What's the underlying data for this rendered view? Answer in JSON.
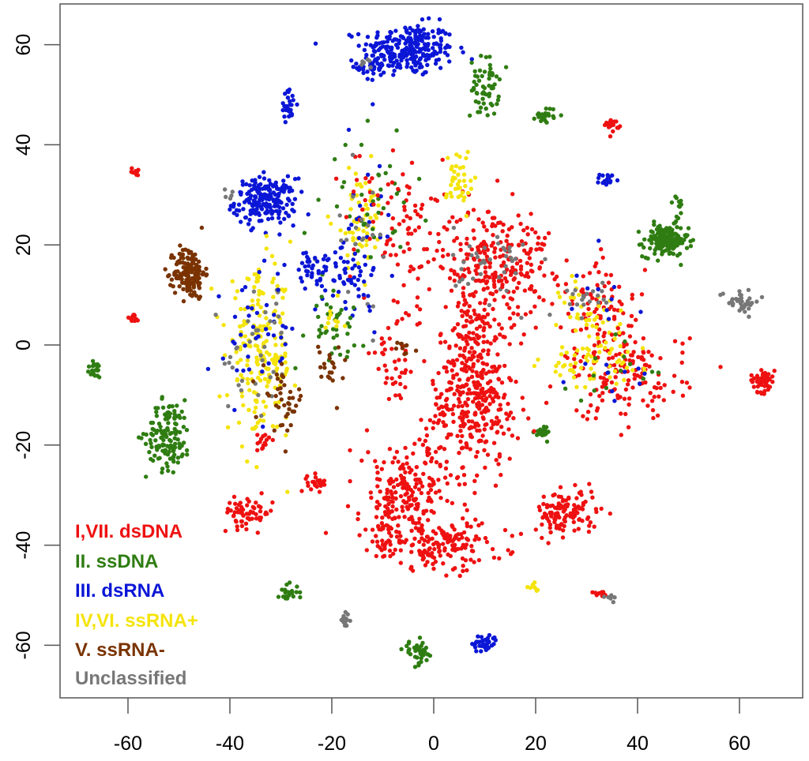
{
  "chart_data": {
    "type": "scatter",
    "title": "",
    "xlabel": "",
    "ylabel": "",
    "xlim": [
      -73,
      72
    ],
    "ylim": [
      -70.5,
      68
    ],
    "xticks": [
      -60,
      -40,
      -20,
      0,
      20,
      40,
      60
    ],
    "yticks": [
      -60,
      -40,
      -20,
      0,
      20,
      40,
      60
    ],
    "grid": false,
    "legend_position": "bottom-left",
    "legend": [
      {
        "key": "dsDNA",
        "label": "I,VII. dsDNA",
        "color": "#ee1111"
      },
      {
        "key": "ssDNA",
        "label": "II. ssDNA",
        "color": "#2f7d12"
      },
      {
        "key": "dsRNA",
        "label": "III. dsRNA",
        "color": "#0b16d6"
      },
      {
        "key": "ssRNApos",
        "label": "IV,VI. ssRNA+",
        "color": "#f4e40a"
      },
      {
        "key": "ssRNAneg",
        "label": "V. ssRNA-",
        "color": "#7a3300"
      },
      {
        "key": "unclassified",
        "label": "Unclassified",
        "color": "#777777"
      }
    ],
    "point_clusters_note": "approximate clusters: [series, center_x, center_y, sd_x, sd_y, count]",
    "clusters": [
      [
        "dsRNA",
        -5,
        59,
        4.5,
        2.6,
        260
      ],
      [
        "dsRNA",
        -12,
        55.5,
        1.5,
        1.5,
        30
      ],
      [
        "unclassified",
        -13,
        56.5,
        1,
        1,
        6
      ],
      [
        "dsRNA",
        -28.5,
        48,
        0.8,
        1.5,
        25
      ],
      [
        "dsRNA",
        -33,
        28.7,
        3,
        2.3,
        200
      ],
      [
        "unclassified",
        -40,
        30,
        0.6,
        0.6,
        5
      ],
      [
        "ssDNA",
        10,
        51.5,
        1.4,
        3,
        60
      ],
      [
        "ssDNA",
        22,
        46,
        1,
        0.8,
        25
      ],
      [
        "dsDNA",
        35,
        44,
        0.7,
        0.6,
        20
      ],
      [
        "dsRNA",
        34,
        33,
        0.7,
        0.6,
        20
      ],
      [
        "dsDNA",
        -58.5,
        34.7,
        0.4,
        0.4,
        8
      ],
      [
        "ssDNA",
        45.5,
        20.8,
        2.2,
        1.6,
        160
      ],
      [
        "ssDNA",
        48,
        27,
        0.5,
        1.5,
        12
      ],
      [
        "unclassified",
        60,
        8.8,
        2,
        1.2,
        40
      ],
      [
        "ssRNAneg",
        -48,
        14.5,
        1.5,
        2.6,
        150
      ],
      [
        "dsDNA",
        -59,
        5.2,
        0.7,
        0.6,
        15
      ],
      [
        "ssDNA",
        -66.5,
        -5,
        0.8,
        0.9,
        20
      ],
      [
        "ssDNA",
        -52,
        -18,
        2.2,
        3.5,
        130
      ],
      [
        "dsDNA",
        64.5,
        -7,
        1.2,
        1.2,
        50
      ],
      [
        "dsDNA",
        -33.5,
        -19.5,
        0.6,
        1.2,
        15
      ],
      [
        "dsDNA",
        -23,
        -27.5,
        0.9,
        0.8,
        25
      ],
      [
        "dsDNA",
        -36.5,
        -33.5,
        2.5,
        1.5,
        60
      ],
      [
        "ssDNA",
        -28.5,
        -49.4,
        1,
        0.8,
        25
      ],
      [
        "unclassified",
        -17.4,
        -55,
        0.5,
        0.7,
        15
      ],
      [
        "ssDNA",
        -3,
        -61.5,
        1.5,
        1.2,
        40
      ],
      [
        "dsRNA",
        10,
        -59.6,
        1.2,
        0.9,
        40
      ],
      [
        "dsDNA",
        32.5,
        -49.5,
        1,
        0.5,
        10
      ],
      [
        "unclassified",
        34,
        -50.5,
        0.6,
        0.3,
        6
      ],
      [
        "ssDNA",
        21.5,
        -17.5,
        0.8,
        0.8,
        20
      ],
      [
        "ssRNApos",
        19.5,
        -48.5,
        0.5,
        0.4,
        8
      ],
      [
        "dsDNA",
        26,
        -33.5,
        3,
        2.3,
        120
      ],
      [
        "dsDNA",
        12,
        17,
        5.5,
        5.5,
        250
      ],
      [
        "unclassified",
        12,
        16,
        4,
        4,
        40
      ],
      [
        "dsDNA",
        8,
        -2,
        3.5,
        7,
        200
      ],
      [
        "dsDNA",
        8,
        -13,
        4.5,
        5,
        200
      ],
      [
        "dsDNA",
        -4.5,
        -29,
        5.5,
        5,
        200
      ],
      [
        "dsDNA",
        2,
        -40,
        6,
        2.5,
        150
      ],
      [
        "dsDNA",
        -9,
        -37,
        2,
        4,
        60
      ],
      [
        "dsDNA",
        -7.5,
        -3,
        2.5,
        4.5,
        40
      ],
      [
        "dsDNA",
        -4.5,
        21.6,
        3,
        8,
        50
      ],
      [
        "ssRNApos",
        -34,
        -2,
        3.2,
        8,
        200
      ],
      [
        "dsRNA",
        -35,
        2,
        4,
        7,
        40
      ],
      [
        "unclassified",
        -34,
        -2,
        3.5,
        7,
        35
      ],
      [
        "ssRNAneg",
        -29.5,
        -11,
        2,
        3,
        40
      ],
      [
        "ssRNApos",
        -14.5,
        25,
        2.5,
        5,
        60
      ],
      [
        "ssDNA",
        -12,
        28,
        4,
        6,
        40
      ],
      [
        "dsRNA",
        -14,
        22,
        3,
        7,
        30
      ],
      [
        "dsDNA",
        -10,
        25,
        4,
        7,
        40
      ],
      [
        "unclassified",
        -15,
        22,
        3,
        6,
        20
      ],
      [
        "dsRNA",
        -22,
        15,
        3.5,
        2.5,
        60
      ],
      [
        "dsRNA",
        -16,
        12,
        2.5,
        2.5,
        25
      ],
      [
        "ssDNA",
        -20,
        4,
        3,
        3.5,
        40
      ],
      [
        "ssRNApos",
        -21,
        6,
        2,
        2,
        10
      ],
      [
        "ssRNAneg",
        -20,
        -4.5,
        1.5,
        2.5,
        20
      ],
      [
        "ssRNAneg",
        -6,
        0,
        1,
        1,
        10
      ],
      [
        "ssRNApos",
        5,
        32.6,
        1.2,
        3.5,
        40
      ],
      [
        "dsDNA",
        33,
        7,
        4,
        5,
        80
      ],
      [
        "ssRNApos",
        31,
        6,
        3,
        4,
        40
      ],
      [
        "unclassified",
        30,
        9,
        2,
        2,
        20
      ],
      [
        "dsRNA",
        33,
        10,
        4,
        4,
        10
      ],
      [
        "dsDNA",
        38,
        -6,
        6,
        4.5,
        150
      ],
      [
        "ssRNApos",
        31,
        -4,
        5,
        2.5,
        60
      ],
      [
        "ssDNA",
        34,
        -5,
        5,
        3,
        15
      ],
      [
        "dsRNA",
        37,
        -6,
        5,
        3,
        10
      ]
    ]
  }
}
